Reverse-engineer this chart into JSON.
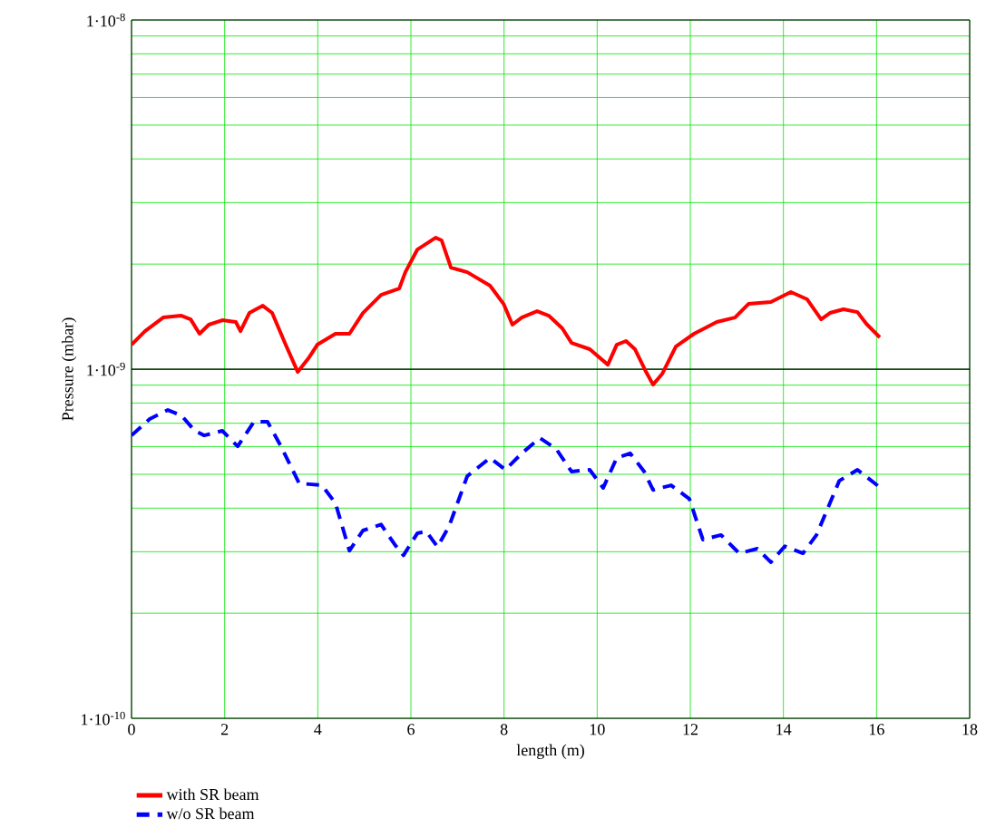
{
  "chart_data": {
    "type": "line",
    "xlabel": "length (m)",
    "ylabel": "Pressure (mbar)",
    "xlim": [
      0,
      18
    ],
    "xticks": [
      0,
      2,
      4,
      6,
      8,
      10,
      12,
      14,
      16,
      18
    ],
    "ylim": [
      1e-10,
      1e-08
    ],
    "yticks": [
      {
        "value": 1e-10,
        "label": "1·10$^{-10}$"
      },
      {
        "value": 1e-09,
        "label": "1·10$^{-9}$"
      },
      {
        "value": 1e-08,
        "label": "1·10$^{-8}$"
      }
    ],
    "log": "y",
    "grid": true,
    "legend": "bottom",
    "marker": "none",
    "ref_lines": [
      {
        "axis": "y",
        "value": 1e-09,
        "color": "#000000"
      }
    ],
    "series": [
      {
        "name": "with SR beam",
        "color": "#ff0000",
        "line_style": "solid",
        "x": [
          0,
          0.29,
          0.68,
          1.07,
          1.27,
          1.46,
          1.66,
          1.95,
          2.24,
          2.34,
          2.53,
          2.82,
          3.02,
          3.31,
          3.57,
          3.8,
          3.99,
          4.38,
          4.68,
          4.97,
          5.36,
          5.75,
          5.88,
          6.14,
          6.53,
          6.66,
          6.86,
          7.21,
          7.7,
          7.99,
          8.18,
          8.38,
          8.71,
          8.96,
          9.25,
          9.45,
          9.84,
          10.23,
          10.42,
          10.62,
          10.81,
          11.05,
          11.2,
          11.4,
          11.69,
          12.08,
          12.57,
          12.96,
          13.25,
          13.73,
          14.16,
          14.51,
          14.81,
          15.0,
          15.29,
          15.59,
          15.78,
          16.07
        ],
        "values": [
          1.175e-09,
          1.285e-09,
          1.406e-09,
          1.423e-09,
          1.389e-09,
          1.263e-09,
          1.341e-09,
          1.381e-09,
          1.365e-09,
          1.285e-09,
          1.449e-09,
          1.52e-09,
          1.449e-09,
          1.175e-09,
          9.82e-10,
          1.074e-09,
          1.175e-09,
          1.263e-09,
          1.263e-09,
          1.449e-09,
          1.633e-09,
          1.703e-09,
          1.896e-09,
          2.202e-09,
          2.38e-09,
          2.338e-09,
          1.954e-09,
          1.896e-09,
          1.734e-09,
          1.538e-09,
          1.341e-09,
          1.406e-09,
          1.466e-09,
          1.423e-09,
          1.309e-09,
          1.189e-09,
          1.141e-09,
          1.03e-09,
          1.175e-09,
          1.204e-09,
          1.141e-09,
          9.82e-10,
          9.03e-10,
          9.71e-10,
          1.161e-09,
          1.263e-09,
          1.365e-09,
          1.406e-09,
          1.538e-09,
          1.557e-09,
          1.663e-09,
          1.585e-09,
          1.389e-09,
          1.449e-09,
          1.484e-09,
          1.457e-09,
          1.349e-09,
          1.233e-09
        ]
      },
      {
        "name": "w/o SR beam",
        "color": "#0000ff",
        "line_style": "dashed",
        "x": [
          0,
          0.39,
          0.78,
          1.07,
          1.36,
          1.56,
          1.95,
          2.28,
          2.63,
          2.92,
          3.21,
          3.6,
          4.09,
          4.38,
          4.68,
          4.97,
          5.36,
          5.65,
          5.84,
          6.14,
          6.33,
          6.57,
          6.82,
          7.21,
          7.7,
          8.03,
          8.38,
          8.77,
          9.12,
          9.45,
          9.84,
          10.13,
          10.42,
          10.71,
          11.01,
          11.2,
          11.59,
          11.98,
          12.27,
          12.66,
          13.05,
          13.44,
          13.73,
          14.03,
          14.42,
          14.71,
          15.2,
          15.59,
          16.07
        ],
        "values": [
          6.46e-10,
          7.2e-10,
          7.64e-10,
          7.37e-10,
          6.66e-10,
          6.46e-10,
          6.66e-10,
          6.01e-10,
          7.07e-10,
          7.07e-10,
          6.01e-10,
          4.71e-10,
          4.65e-10,
          4.13e-10,
          3.02e-10,
          3.45e-10,
          3.59e-10,
          3.15e-10,
          2.93e-10,
          3.39e-10,
          3.43e-10,
          3.1e-10,
          3.55e-10,
          4.94e-10,
          5.57e-10,
          5.15e-10,
          5.74e-10,
          6.35e-10,
          5.91e-10,
          5.09e-10,
          5.15e-10,
          4.57e-10,
          5.57e-10,
          5.74e-10,
          5.09e-10,
          4.51e-10,
          4.65e-10,
          4.25e-10,
          3.25e-10,
          3.35e-10,
          2.97e-10,
          3.06e-10,
          2.8e-10,
          3.11e-10,
          2.97e-10,
          3.35e-10,
          4.79e-10,
          5.15e-10,
          4.59e-10
        ]
      }
    ]
  }
}
